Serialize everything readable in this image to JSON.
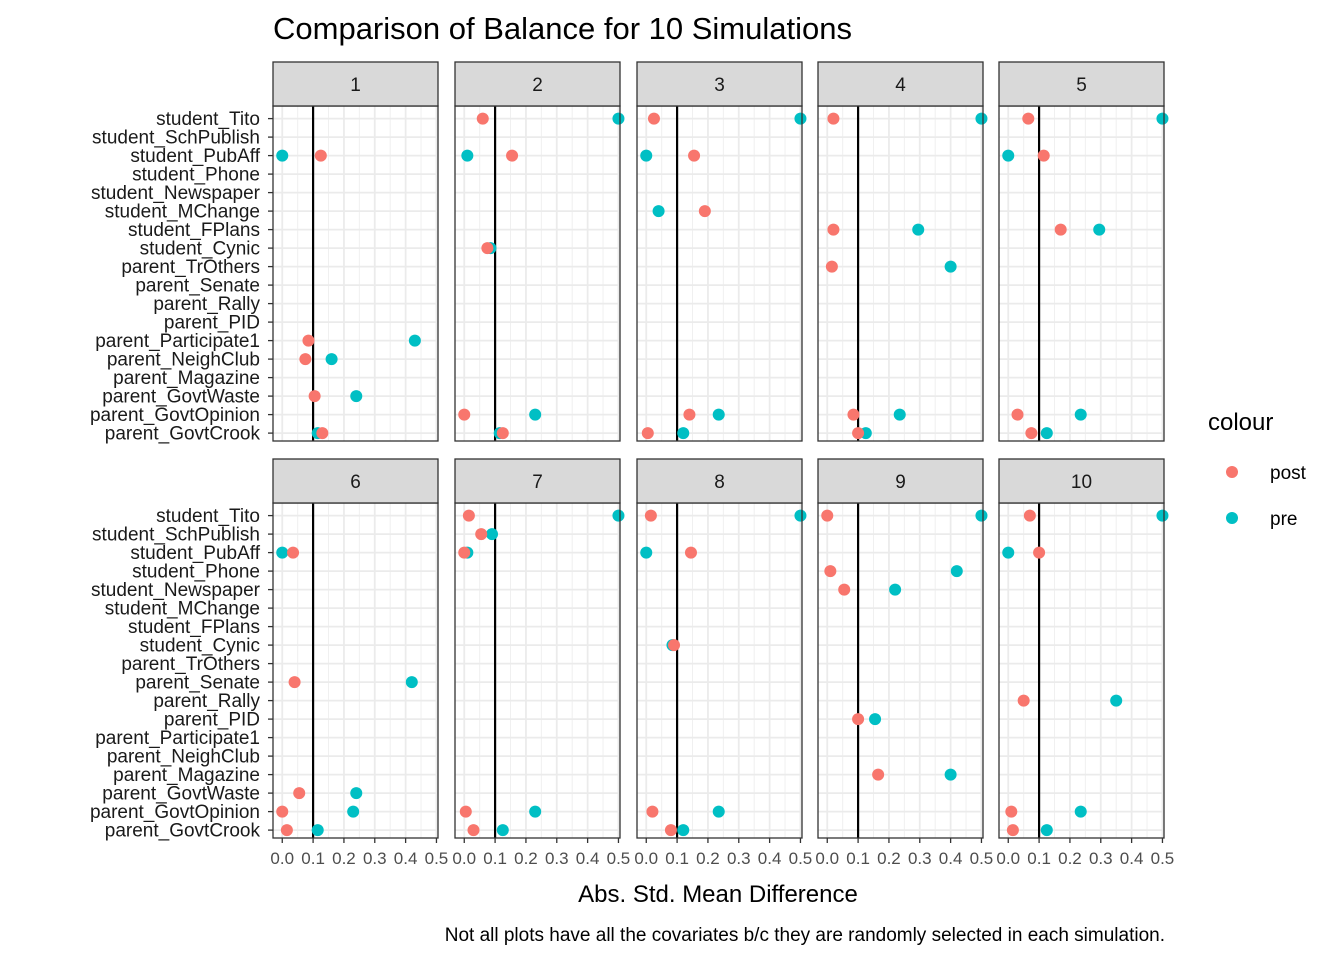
{
  "chart_data": {
    "type": "scatter",
    "title": "Comparison of Balance for 10 Simulations",
    "xlabel": "Abs. Std. Mean Difference",
    "ylabel": "",
    "caption": "Not all plots have all the covariates b/c they are randomly selected in each simulation.",
    "xlim": [
      -0.03,
      0.505
    ],
    "x_ticks": [
      0.0,
      0.1,
      0.2,
      0.3,
      0.4,
      0.5
    ],
    "x_tick_labels": [
      "0.0",
      "0.1",
      "0.2",
      "0.3",
      "0.4",
      "0.5"
    ],
    "reference_line_x": 0.1,
    "grid": true,
    "legend": {
      "title": "colour",
      "position": "right",
      "entries": [
        {
          "name": "post",
          "color": "#F8766D"
        },
        {
          "name": "pre",
          "color": "#00BFC4"
        }
      ]
    },
    "covariates": [
      "student_Tito",
      "student_SchPublish",
      "student_PubAff",
      "student_Phone",
      "student_Newspaper",
      "student_MChange",
      "student_FPlans",
      "student_Cynic",
      "parent_TrOthers",
      "parent_Senate",
      "parent_Rally",
      "parent_PID",
      "parent_Participate1",
      "parent_NeighClub",
      "parent_Magazine",
      "parent_GovtWaste",
      "parent_GovtOpinion",
      "parent_GovtCrook"
    ],
    "panels": [
      {
        "label": "1",
        "points": [
          {
            "covariate": "student_PubAff",
            "pre": 0.0,
            "post": 0.125
          },
          {
            "covariate": "parent_Participate1",
            "pre": 0.43,
            "post": 0.085
          },
          {
            "covariate": "parent_NeighClub",
            "pre": 0.16,
            "post": 0.075
          },
          {
            "covariate": "parent_GovtWaste",
            "pre": 0.24,
            "post": 0.105
          },
          {
            "covariate": "parent_GovtCrook",
            "pre": 0.115,
            "post": 0.13
          }
        ]
      },
      {
        "label": "2",
        "points": [
          {
            "covariate": "student_Tito",
            "pre": 0.5,
            "post": 0.06
          },
          {
            "covariate": "student_PubAff",
            "pre": 0.01,
            "post": 0.155
          },
          {
            "covariate": "student_Cynic",
            "pre": 0.085,
            "post": 0.075
          },
          {
            "covariate": "parent_GovtOpinion",
            "pre": 0.23,
            "post": 0.0
          },
          {
            "covariate": "parent_GovtCrook",
            "pre": 0.115,
            "post": 0.125
          }
        ]
      },
      {
        "label": "3",
        "points": [
          {
            "covariate": "student_Tito",
            "pre": 0.5,
            "post": 0.025
          },
          {
            "covariate": "student_PubAff",
            "pre": 0.0,
            "post": 0.155
          },
          {
            "covariate": "student_MChange",
            "pre": 0.04,
            "post": 0.19
          },
          {
            "covariate": "parent_GovtOpinion",
            "pre": 0.235,
            "post": 0.14
          },
          {
            "covariate": "parent_GovtCrook",
            "pre": 0.12,
            "post": 0.005
          }
        ]
      },
      {
        "label": "4",
        "points": [
          {
            "covariate": "student_Tito",
            "pre": 0.5,
            "post": 0.02
          },
          {
            "covariate": "student_FPlans",
            "pre": 0.295,
            "post": 0.02
          },
          {
            "covariate": "parent_TrOthers",
            "pre": 0.4,
            "post": 0.015
          },
          {
            "covariate": "parent_GovtOpinion",
            "pre": 0.235,
            "post": 0.085
          },
          {
            "covariate": "parent_GovtCrook",
            "pre": 0.125,
            "post": 0.1
          }
        ]
      },
      {
        "label": "5",
        "points": [
          {
            "covariate": "student_Tito",
            "pre": 0.5,
            "post": 0.065
          },
          {
            "covariate": "student_PubAff",
            "pre": 0.0,
            "post": 0.115
          },
          {
            "covariate": "student_FPlans",
            "pre": 0.295,
            "post": 0.17
          },
          {
            "covariate": "parent_GovtOpinion",
            "pre": 0.235,
            "post": 0.03
          },
          {
            "covariate": "parent_GovtCrook",
            "pre": 0.125,
            "post": 0.075
          }
        ]
      },
      {
        "label": "6",
        "points": [
          {
            "covariate": "student_PubAff",
            "pre": 0.0,
            "post": 0.035
          },
          {
            "covariate": "parent_Senate",
            "pre": 0.42,
            "post": 0.04
          },
          {
            "covariate": "parent_GovtWaste",
            "pre": 0.24,
            "post": 0.055
          },
          {
            "covariate": "parent_GovtOpinion",
            "pre": 0.23,
            "post": 0.0
          },
          {
            "covariate": "parent_GovtCrook",
            "pre": 0.115,
            "post": 0.015
          }
        ]
      },
      {
        "label": "7",
        "points": [
          {
            "covariate": "student_Tito",
            "pre": 0.5,
            "post": 0.015
          },
          {
            "covariate": "student_SchPublish",
            "pre": 0.09,
            "post": 0.055
          },
          {
            "covariate": "student_PubAff",
            "pre": 0.01,
            "post": 0.0
          },
          {
            "covariate": "parent_GovtOpinion",
            "pre": 0.23,
            "post": 0.005
          },
          {
            "covariate": "parent_GovtCrook",
            "pre": 0.125,
            "post": 0.03
          }
        ]
      },
      {
        "label": "8",
        "points": [
          {
            "covariate": "student_Tito",
            "pre": 0.5,
            "post": 0.015
          },
          {
            "covariate": "student_PubAff",
            "pre": 0.0,
            "post": 0.145
          },
          {
            "covariate": "student_Cynic",
            "pre": 0.085,
            "post": 0.09
          },
          {
            "covariate": "parent_GovtOpinion",
            "pre": 0.235,
            "post": 0.02
          },
          {
            "covariate": "parent_GovtCrook",
            "pre": 0.12,
            "post": 0.08
          }
        ]
      },
      {
        "label": "9",
        "points": [
          {
            "covariate": "student_Tito",
            "pre": 0.5,
            "post": 0.0
          },
          {
            "covariate": "student_Phone",
            "pre": 0.42,
            "post": 0.01
          },
          {
            "covariate": "student_Newspaper",
            "pre": 0.22,
            "post": 0.055
          },
          {
            "covariate": "parent_PID",
            "pre": 0.155,
            "post": 0.1
          },
          {
            "covariate": "parent_Magazine",
            "pre": 0.4,
            "post": 0.165
          }
        ]
      },
      {
        "label": "10",
        "points": [
          {
            "covariate": "student_Tito",
            "pre": 0.5,
            "post": 0.07
          },
          {
            "covariate": "student_PubAff",
            "pre": 0.0,
            "post": 0.1
          },
          {
            "covariate": "parent_Rally",
            "pre": 0.35,
            "post": 0.05
          },
          {
            "covariate": "parent_GovtOpinion",
            "pre": 0.235,
            "post": 0.01
          },
          {
            "covariate": "parent_GovtCrook",
            "pre": 0.125,
            "post": 0.015
          }
        ]
      }
    ]
  }
}
